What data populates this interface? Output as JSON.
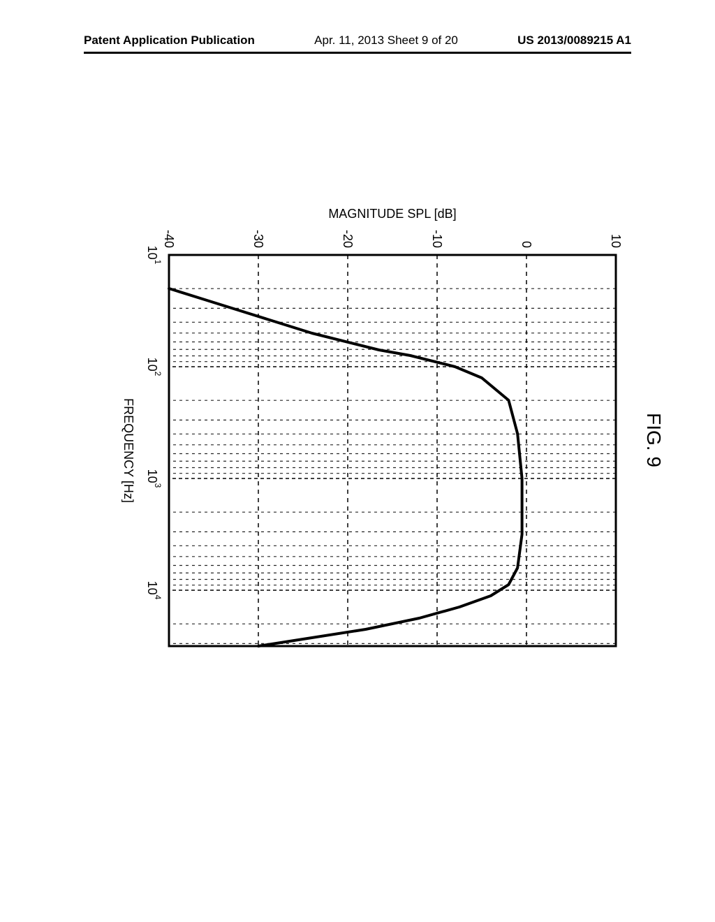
{
  "header": {
    "left": "Patent Application Publication",
    "center": "Apr. 11, 2013  Sheet 9 of 20",
    "right": "US 2013/0089215 A1"
  },
  "figure": {
    "title": "FIG. 9",
    "type": "line",
    "x_axis": {
      "label": "FREQUENCY [Hz]",
      "scale": "log",
      "min_exp": 1,
      "max_exp": 4.5,
      "major_exp": [
        1,
        2,
        3,
        4
      ],
      "major_labels": [
        "10",
        "10",
        "10",
        "10"
      ],
      "major_sup": [
        "1",
        "2",
        "3",
        "4"
      ]
    },
    "y_axis": {
      "label": "MAGNITUDE SPL [dB]",
      "min": -40,
      "max": 10,
      "ticks": [
        10,
        0,
        -10,
        -20,
        -30,
        -40
      ]
    },
    "line": {
      "color": "#000000",
      "width": 4,
      "points": [
        [
          1.3,
          -40.0
        ],
        [
          1.4,
          -36.0
        ],
        [
          1.5,
          -32.0
        ],
        [
          1.6,
          -28.0
        ],
        [
          1.7,
          -24.0
        ],
        [
          1.78,
          -20.0
        ],
        [
          1.85,
          -16.5
        ],
        [
          1.9,
          -13.0
        ],
        [
          2.0,
          -8.0
        ],
        [
          2.1,
          -5.0
        ],
        [
          2.3,
          -2.0
        ],
        [
          2.6,
          -1.0
        ],
        [
          3.0,
          -0.5
        ],
        [
          3.5,
          -0.5
        ],
        [
          3.8,
          -1.0
        ],
        [
          3.95,
          -2.0
        ],
        [
          4.05,
          -4.0
        ],
        [
          4.15,
          -7.5
        ],
        [
          4.25,
          -12.0
        ],
        [
          4.35,
          -18.0
        ],
        [
          4.45,
          -26.0
        ],
        [
          4.5,
          -30.0
        ]
      ]
    },
    "plot": {
      "border_color": "#000000",
      "border_width": 3,
      "grid_color": "#000000",
      "grid_dash_major_v": "5 4",
      "grid_dash_minor_v": "4 5",
      "grid_dash_h": "6 6",
      "grid_width_minor": 1.2,
      "grid_width_major": 1.5
    }
  }
}
